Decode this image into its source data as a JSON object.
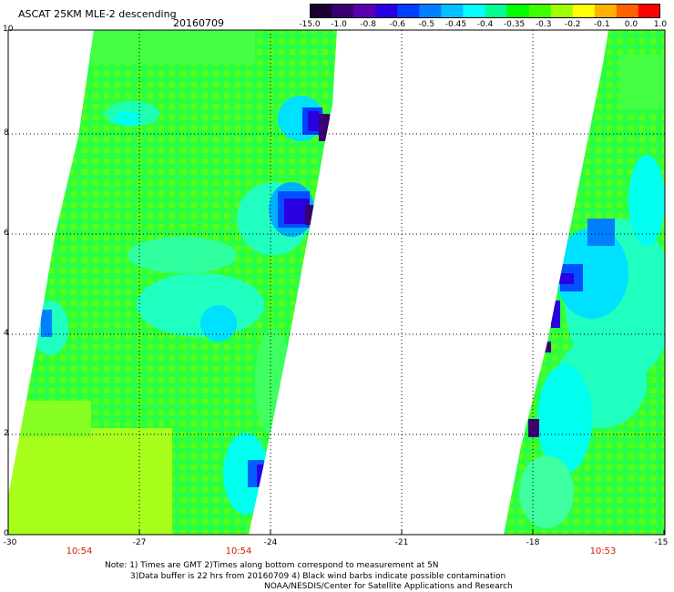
{
  "title": "ASCAT 25KM MLE-2 descending",
  "date": "20160709",
  "colorbar": {
    "labels": [
      "-15.0",
      "-1.0",
      "-0.8",
      "-0.6",
      "-0.5",
      "-0.45",
      "-0.4",
      "-0.35",
      "-0.3",
      "-0.2",
      "-0.1",
      "0.0",
      "1.0"
    ],
    "colors": [
      "#1a0030",
      "#3a0070",
      "#5a00b0",
      "#2a00e0",
      "#0040ff",
      "#0080ff",
      "#00c0ff",
      "#00ffff",
      "#00ff90",
      "#00ff00",
      "#40ff00",
      "#a0ff00",
      "#ffff00",
      "#ffb000",
      "#ff6000",
      "#ff0000"
    ]
  },
  "axes": {
    "x_ticks": [
      "-30",
      "-27",
      "-24",
      "-21",
      "-18",
      "-15"
    ],
    "y_ticks": [
      "0",
      "2",
      "4",
      "6",
      "8",
      "10"
    ]
  },
  "times": [
    "10:54",
    "10:54",
    "10:53"
  ],
  "notes": {
    "line1": "Note: 1) Times are GMT 2)Times along bottom correspond to measurement at 5N",
    "line2": "3)Data buffer is 22 hrs from 20160709 4) Black wind barbs indicate possible contamination",
    "line3": "NOAA/NESDIS/Center for Satellite Applications and Research"
  }
}
